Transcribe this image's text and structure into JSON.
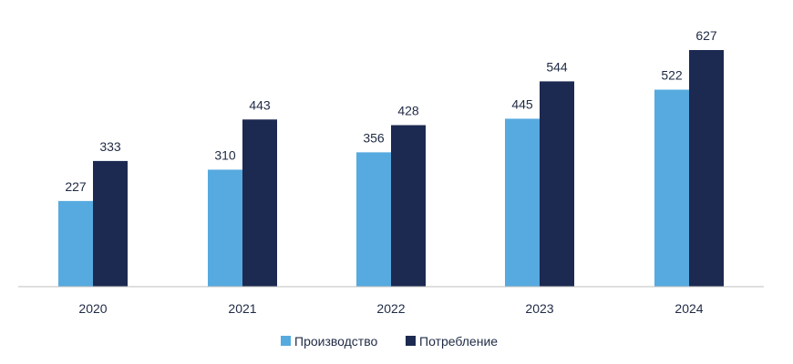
{
  "chart_data": {
    "type": "bar",
    "title": "",
    "xlabel": "",
    "ylabel": "",
    "categories": [
      "2020",
      "2021",
      "2022",
      "2023",
      "2024"
    ],
    "series": [
      {
        "name": "Производство",
        "values": [
          227,
          310,
          356,
          445,
          522
        ],
        "color": "#56aadf"
      },
      {
        "name": "Потребление",
        "values": [
          333,
          443,
          428,
          544,
          627
        ],
        "color": "#1c2951"
      }
    ],
    "data_labels": {
      "Производство": [
        "227",
        "310",
        "356",
        "445",
        "522"
      ],
      "Потребление": [
        "333",
        "443",
        "428",
        "544",
        "627"
      ]
    },
    "ylim": [
      0,
      650
    ],
    "grid": false,
    "legend_position": "bottom",
    "axis_color": "#bfbfbf"
  }
}
